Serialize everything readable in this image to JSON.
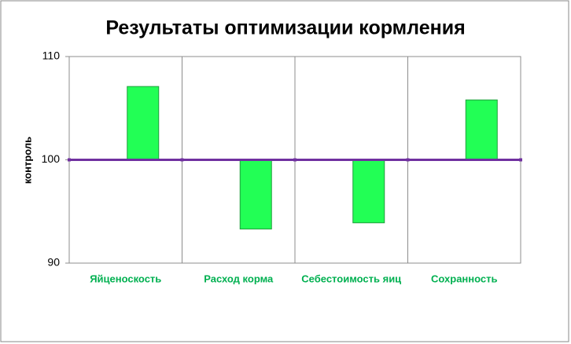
{
  "chart_data": {
    "type": "bar",
    "title": "Результаты оптимизации кормления",
    "y_label": "контроль",
    "categories": [
      "Яйценоскость",
      "Расход корма",
      "Себестоимость яиц",
      "Сохранность"
    ],
    "values": [
      107.1,
      93.3,
      93.9,
      105.8
    ],
    "base": 100,
    "color": "#22ff55",
    "edge_color": "#1f9e3c",
    "label_color": "#00b050",
    "base_color": "#7030a0",
    "ylim": [
      90,
      110
    ],
    "yticks": [
      90,
      100,
      110
    ],
    "grid": false
  }
}
